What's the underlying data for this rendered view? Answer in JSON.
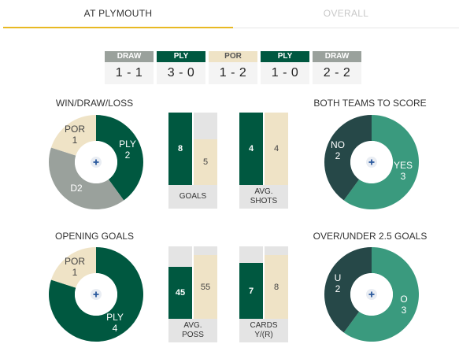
{
  "tabs": [
    {
      "label": "AT PLYMOUTH"
    },
    {
      "label": "OVERALL"
    }
  ],
  "form": [
    {
      "result": "DRAW",
      "score": "1 - 1",
      "color": "#9aa19c",
      "text_color": "#ffffff"
    },
    {
      "result": "PLY",
      "score": "3 - 0",
      "color": "#005840",
      "text_color": "#ffffff"
    },
    {
      "result": "POR",
      "score": "1 - 2",
      "color": "#efe3c6",
      "text_color": "#555555"
    },
    {
      "result": "PLY",
      "score": "1 - 0",
      "color": "#005840",
      "text_color": "#ffffff"
    },
    {
      "result": "DRAW",
      "score": "2 - 2",
      "color": "#9aa19c",
      "text_color": "#ffffff"
    }
  ],
  "wdl": {
    "title": "WIN/DRAW/LOSS",
    "ply": {
      "label": "PLY",
      "value": "2"
    },
    "por": {
      "label": "POR",
      "value": "1"
    },
    "draw": {
      "label": "D2"
    },
    "values": [
      2,
      2,
      1
    ],
    "colors": [
      "#005840",
      "#9aa19c",
      "#efe3c6"
    ]
  },
  "goals": {
    "ply": 8,
    "por": 5,
    "ply_text": "8",
    "por_text": "5",
    "label": "GOALS"
  },
  "shots": {
    "ply": 4,
    "por": 4,
    "ply_text": "4",
    "por_text": "4",
    "label_line1": "AVG.",
    "label_line2": "SHOTS"
  },
  "btts": {
    "title": "BOTH TEAMS TO SCORE",
    "no": {
      "label": "NO",
      "value": "2"
    },
    "yes": {
      "label": "YES",
      "value": "3"
    },
    "values": [
      3,
      2
    ],
    "colors": [
      "#3a9a7e",
      "#264848"
    ]
  },
  "opening": {
    "title": "OPENING GOALS",
    "ply": {
      "label": "PLY",
      "value": "4"
    },
    "por": {
      "label": "POR",
      "value": "1"
    },
    "values": [
      4,
      1
    ],
    "colors": [
      "#005840",
      "#efe3c6"
    ]
  },
  "poss": {
    "ply": 45,
    "por": 55,
    "ply_text": "45",
    "por_text": "55",
    "label_line1": "AVG.",
    "label_line2": "POSS"
  },
  "cards": {
    "ply": 7,
    "por": 8,
    "ply_text": "7",
    "por_text": "8",
    "label_line1": "CARDS",
    "label_line2": "Y/(R)"
  },
  "ou": {
    "title": "OVER/UNDER 2.5 GOALS",
    "under": {
      "label": "U",
      "value": "2"
    },
    "over": {
      "label": "O",
      "value": "3"
    },
    "values": [
      3,
      2
    ],
    "colors": [
      "#3a9a7e",
      "#264848"
    ]
  },
  "icons": {
    "center": "plus-icon"
  }
}
